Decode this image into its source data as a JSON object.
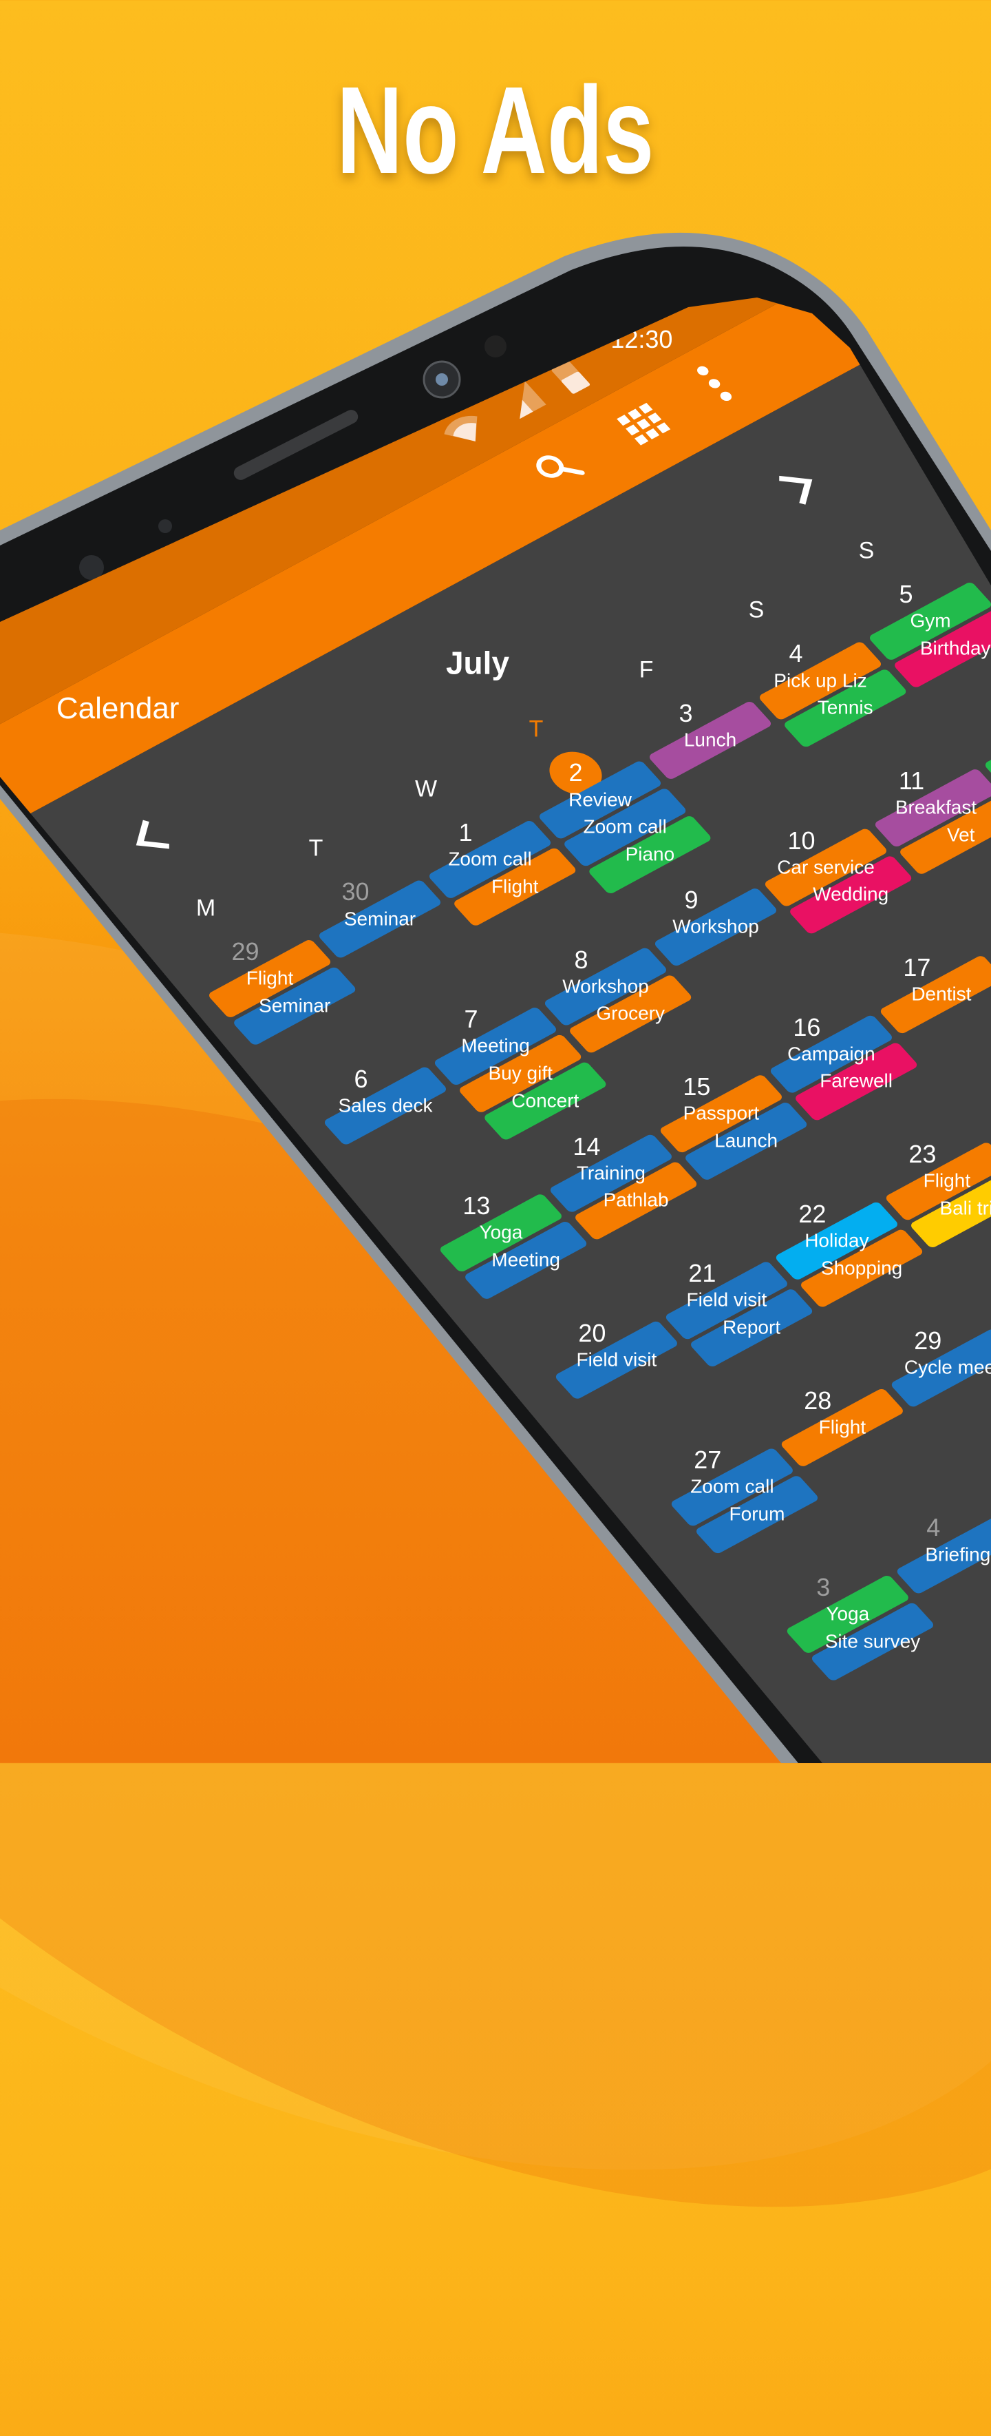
{
  "headline": "No Ads",
  "status_bar": {
    "time": "12:30",
    "icons": [
      "wifi-icon",
      "signal-icon",
      "battery-icon"
    ]
  },
  "toolbar": {
    "title": "Calendar",
    "icons": [
      "search-icon",
      "grid-view-icon",
      "more-vert-icon"
    ]
  },
  "month_nav": {
    "month": "July",
    "prev_icon": "chevron-left-icon",
    "next_icon": "chevron-right-icon"
  },
  "weekdays": [
    "M",
    "T",
    "W",
    "T",
    "F",
    "S",
    "S"
  ],
  "today_weekday_index": 3,
  "colors": {
    "accent": "#f57c00",
    "status_bar": "#dc6f00",
    "background": "#424242",
    "blue": "#1e74c0",
    "orange": "#f57c00",
    "green": "#22bb4c",
    "purple": "#a64d9f",
    "pink": "#e91163",
    "lightblue": "#03aef0",
    "yellow": "#ffcc00"
  },
  "weeks": [
    {
      "cells": [
        {
          "day": "29",
          "muted": true,
          "events": [
            {
              "title": "Flight",
              "color": "orange"
            },
            {
              "title": "Seminar",
              "color": "blue"
            }
          ]
        },
        {
          "day": "30",
          "muted": true,
          "events": [
            {
              "title": "Seminar",
              "color": "blue"
            }
          ]
        },
        {
          "day": "1",
          "events": [
            {
              "title": "Zoom call",
              "color": "blue"
            },
            {
              "title": "Flight",
              "color": "orange"
            }
          ]
        },
        {
          "day": "2",
          "today": true,
          "events": [
            {
              "title": "Review",
              "color": "blue"
            },
            {
              "title": "Zoom call",
              "color": "blue"
            },
            {
              "title": "Piano",
              "color": "green"
            }
          ]
        },
        {
          "day": "3",
          "events": [
            {
              "title": "Lunch",
              "color": "purple"
            }
          ]
        },
        {
          "day": "4",
          "events": [
            {
              "title": "Pick up Liz",
              "color": "orange"
            },
            {
              "title": "Tennis",
              "color": "green"
            }
          ]
        },
        {
          "day": "5",
          "events": [
            {
              "title": "Gym",
              "color": "green"
            },
            {
              "title": "Birthday",
              "color": "pink"
            }
          ]
        }
      ]
    },
    {
      "cells": [
        {
          "day": "6",
          "events": [
            {
              "title": "Sales deck",
              "color": "blue"
            }
          ]
        },
        {
          "day": "7",
          "events": [
            {
              "title": "Meeting",
              "color": "blue"
            },
            {
              "title": "Buy gift",
              "color": "orange"
            },
            {
              "title": "Concert",
              "color": "green"
            }
          ]
        },
        {
          "day": "8",
          "events": [
            {
              "title": "Workshop",
              "color": "blue"
            },
            {
              "title": "Grocery",
              "color": "orange"
            }
          ]
        },
        {
          "day": "9",
          "events": [
            {
              "title": "Workshop",
              "color": "blue"
            }
          ]
        },
        {
          "day": "10",
          "events": [
            {
              "title": "Car service",
              "color": "orange"
            },
            {
              "title": "Wedding",
              "color": "pink"
            }
          ]
        },
        {
          "day": "11",
          "events": [
            {
              "title": "Breakfast",
              "color": "purple"
            },
            {
              "title": "Vet",
              "color": "orange"
            }
          ]
        },
        {
          "day": "",
          "events": [
            {
              "title": "",
              "color": "green"
            }
          ]
        }
      ]
    },
    {
      "cells": [
        {
          "day": "13",
          "events": [
            {
              "title": "Yoga",
              "color": "green"
            },
            {
              "title": "Meeting",
              "color": "blue"
            }
          ]
        },
        {
          "day": "14",
          "events": [
            {
              "title": "Training",
              "color": "blue"
            },
            {
              "title": "Pathlab",
              "color": "orange"
            }
          ]
        },
        {
          "day": "15",
          "events": [
            {
              "title": "Passport",
              "color": "orange"
            },
            {
              "title": "Launch",
              "color": "blue"
            }
          ]
        },
        {
          "day": "16",
          "events": [
            {
              "title": "Campaign",
              "color": "blue"
            },
            {
              "title": "Farewell",
              "color": "pink"
            }
          ]
        },
        {
          "day": "17",
          "events": [
            {
              "title": "Dentist",
              "color": "orange"
            }
          ]
        },
        {
          "day": "",
          "events": [
            {
              "title": "",
              "color": "green"
            }
          ]
        }
      ]
    },
    {
      "cells": [
        {
          "day": "20",
          "events": [
            {
              "title": "Field visit",
              "color": "blue"
            }
          ]
        },
        {
          "day": "21",
          "events": [
            {
              "title": "Field visit",
              "color": "blue"
            },
            {
              "title": "Report",
              "color": "blue"
            }
          ]
        },
        {
          "day": "22",
          "events": [
            {
              "title": "Holiday",
              "color": "lightblue"
            },
            {
              "title": "Shopping",
              "color": "orange"
            }
          ]
        },
        {
          "day": "23",
          "events": [
            {
              "title": "Flight",
              "color": "orange"
            },
            {
              "title": "Bali trip",
              "color": "yellow"
            }
          ]
        }
      ]
    },
    {
      "cells": [
        {
          "day": "27",
          "events": [
            {
              "title": "Zoom call",
              "color": "blue"
            },
            {
              "title": "Forum",
              "color": "blue"
            }
          ]
        },
        {
          "day": "28",
          "events": [
            {
              "title": "Flight",
              "color": "orange"
            }
          ]
        },
        {
          "day": "29",
          "events": [
            {
              "title": "Cycle meet",
              "color": "blue"
            }
          ]
        }
      ]
    },
    {
      "cells": [
        {
          "day": "3",
          "muted": true,
          "events": [
            {
              "title": "Yoga",
              "color": "green"
            },
            {
              "title": "Site survey",
              "color": "blue"
            }
          ]
        },
        {
          "day": "4",
          "muted": true,
          "events": [
            {
              "title": "Briefing",
              "color": "blue"
            }
          ]
        }
      ]
    }
  ]
}
